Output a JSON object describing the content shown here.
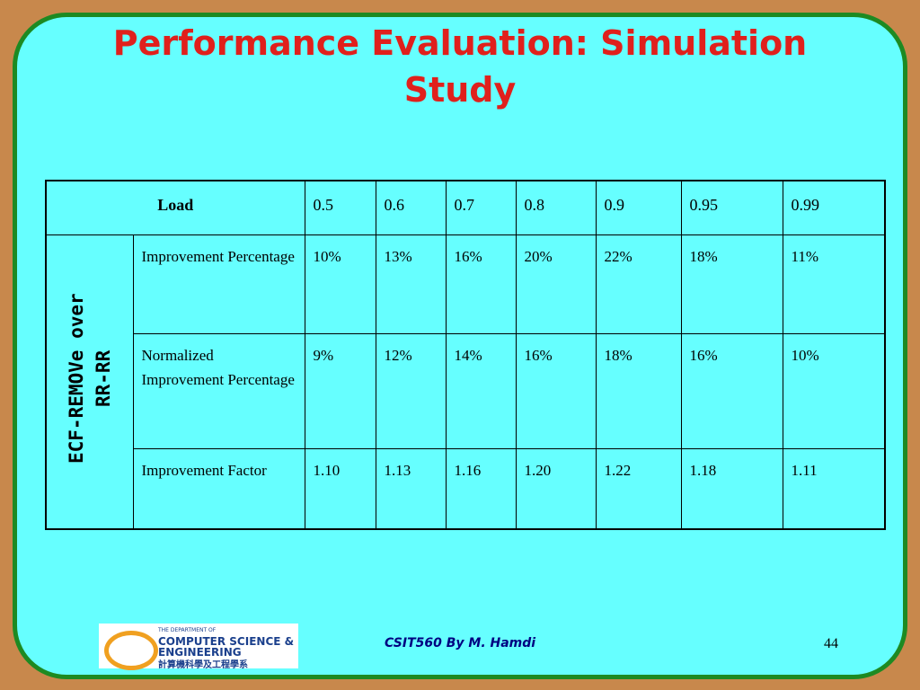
{
  "header": {
    "title": "Performance Evaluation: Simulation Study"
  },
  "table": {
    "corner": "Load",
    "loads": [
      "0.5",
      "0.6",
      "0.7",
      "0.8",
      "0.9",
      "0.95",
      "0.99"
    ],
    "group": "ECF-REMOVe over RR-RR",
    "rows": [
      {
        "label": "Improvement Percentage",
        "cells": [
          "10%",
          "13%",
          "16%",
          "20%",
          "22%",
          "18%",
          "11%"
        ]
      },
      {
        "label": "Normalized Improvement Percentage",
        "cells": [
          "9%",
          "12%",
          "14%",
          "16%",
          "18%",
          "16%",
          "10%"
        ]
      },
      {
        "label": "Improvement Factor",
        "cells": [
          "1.10",
          "1.13",
          "1.16",
          "1.20",
          "1.22",
          "1.18",
          "1.11"
        ]
      }
    ]
  },
  "footer": {
    "logo": [
      "THE DEPARTMENT OF",
      "COMPUTER SCIENCE &",
      "ENGINEERING",
      "計算機科學及工程學系"
    ],
    "credit": "CSIT560 By M. Hamdi",
    "page": "44"
  }
}
